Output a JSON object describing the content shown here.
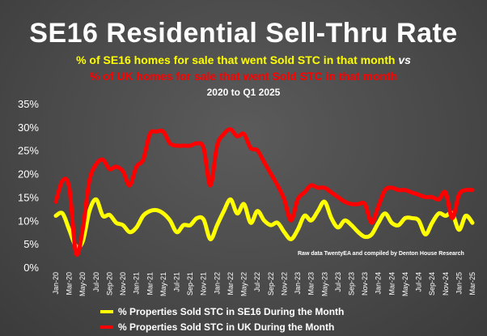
{
  "chart_data": {
    "type": "line",
    "title": "SE16 Residential Sell-Thru Rate",
    "subtitle_yellow": "% of SE16 homes for sale that went Sold STC in that month",
    "subtitle_vs": "vs",
    "subtitle_red": "% of UK homes for sale that went Sold STC in that month",
    "period": "2020 to Q1 2025",
    "source_note": "Raw data TwentyEA and compiled by Denton House Research",
    "ylim": [
      0,
      35
    ],
    "yticks": [
      "0%",
      "5%",
      "10%",
      "15%",
      "20%",
      "25%",
      "30%",
      "35%"
    ],
    "x": [
      "Jan-20",
      "Feb-20",
      "Mar-20",
      "Apr-20",
      "May-20",
      "Jun-20",
      "Jul-20",
      "Aug-20",
      "Sep-20",
      "Oct-20",
      "Nov-20",
      "Dec-20",
      "Jan-21",
      "Feb-21",
      "Mar-21",
      "Apr-21",
      "May-21",
      "Jun-21",
      "Jul-21",
      "Aug-21",
      "Sep-21",
      "Oct-21",
      "Nov-21",
      "Dec-21",
      "Jan-22",
      "Feb-22",
      "Mar-22",
      "Apr-22",
      "May-22",
      "Jun-22",
      "Jul-22",
      "Aug-22",
      "Sep-22",
      "Oct-22",
      "Nov-22",
      "Dec-22",
      "Jan-23",
      "Feb-23",
      "Mar-23",
      "Apr-23",
      "May-23",
      "Jun-23",
      "Jul-23",
      "Aug-23",
      "Sep-23",
      "Oct-23",
      "Nov-23",
      "Dec-23",
      "Jan-24",
      "Feb-24",
      "Mar-24",
      "Apr-24",
      "May-24",
      "Jun-24",
      "Jul-24",
      "Aug-24",
      "Sep-24",
      "Oct-24",
      "Nov-24",
      "Dec-24",
      "Jan-25",
      "Feb-25",
      "Mar-25"
    ],
    "xtick_labels": [
      "Jan-20",
      "Mar-20",
      "May-20",
      "Jul-20",
      "Sep-20",
      "Nov-20",
      "Jan-21",
      "Mar-21",
      "May-21",
      "Jul-21",
      "Sep-21",
      "Nov-21",
      "Jan-22",
      "Mar-22",
      "May-22",
      "Jul-22",
      "Sep-22",
      "Nov-22",
      "Jan-23",
      "Mar-23",
      "May-23",
      "Jul-23",
      "Sep-23",
      "Nov-23",
      "Jan-24",
      "Mar-24",
      "May-24",
      "Jul-24",
      "Sep-24",
      "Nov-24",
      "Jan-25",
      "Mar-25"
    ],
    "series": [
      {
        "name": "% Properties Sold STC in SE16 During the Month",
        "color": "#ffff00",
        "values": [
          11,
          11.5,
          8,
          4.5,
          5.5,
          12,
          14.5,
          11,
          11.2,
          9.5,
          9,
          7.5,
          8.5,
          11,
          12,
          12.2,
          11.5,
          10,
          7.5,
          9,
          9,
          10.5,
          10.2,
          6,
          9,
          12,
          14.5,
          11.5,
          13.5,
          9.5,
          12,
          10,
          9,
          9.5,
          7.5,
          6,
          8,
          11,
          10,
          12,
          14,
          10.5,
          8.5,
          10,
          9,
          7.5,
          6.5,
          7,
          9.5,
          11.5,
          9.5,
          9,
          10.5,
          10.5,
          10,
          7,
          9.5,
          11.5,
          11,
          11.5,
          8,
          11,
          9.5
        ]
      },
      {
        "name": "% Properties Sold STC in UK During the Month",
        "color": "#ff0000",
        "values": [
          14,
          18.5,
          17,
          3,
          8,
          18.5,
          22,
          23,
          21,
          21.5,
          20.5,
          17.5,
          21.5,
          23,
          28.5,
          29,
          29,
          26.5,
          26,
          26,
          26,
          26.5,
          25.5,
          17.5,
          26,
          28.5,
          29.5,
          28,
          28.5,
          25.5,
          25,
          22.5,
          20,
          17.5,
          14.5,
          10,
          14.5,
          16,
          17.5,
          17,
          17,
          16,
          15,
          14,
          13.5,
          13.5,
          13.5,
          9.5,
          13,
          16.5,
          17,
          16.5,
          16.5,
          16,
          15.5,
          15,
          15,
          14.5,
          16,
          10.5,
          15.5,
          16.5,
          16.5
        ]
      }
    ]
  }
}
